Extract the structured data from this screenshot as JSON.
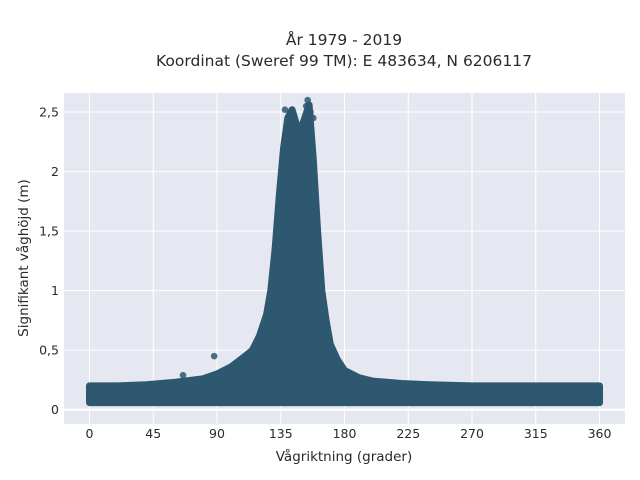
{
  "chart_data": {
    "type": "scatter",
    "title": [
      "År 1979 - 2019",
      "Koordinat (Sweref 99 TM): E 483634, N 6206117"
    ],
    "xlabel": "Vågriktning (grader)",
    "ylabel": "Signifikant våghöjd (m)",
    "xlim": [
      -18,
      378
    ],
    "ylim": [
      -0.12,
      2.66
    ],
    "x_ticks": [
      0,
      45,
      90,
      135,
      180,
      225,
      270,
      315,
      360
    ],
    "y_ticks": [
      0,
      0.5,
      1,
      1.5,
      2,
      2.5
    ],
    "y_tick_labels": [
      "0",
      "0,5",
      "1",
      "1,5",
      "2",
      "2,5"
    ],
    "grid": true,
    "legend": "none",
    "marker_color": "#2e5870",
    "plot_background": "#e5e8f0",
    "envelope": {
      "direction": [
        0,
        20,
        40,
        60,
        80,
        90,
        100,
        110,
        115,
        120,
        125,
        128,
        131,
        134,
        137,
        140,
        143,
        146,
        149,
        152,
        155,
        158,
        161,
        164,
        167,
        170,
        175,
        180,
        190,
        200,
        220,
        240,
        270,
        300,
        330,
        360
      ],
      "height_max": [
        0.2,
        0.2,
        0.21,
        0.23,
        0.26,
        0.3,
        0.36,
        0.45,
        0.5,
        0.62,
        0.8,
        1.0,
        1.35,
        1.8,
        2.2,
        2.45,
        2.52,
        2.4,
        2.35,
        2.45,
        2.56,
        2.1,
        1.5,
        1.0,
        0.75,
        0.55,
        0.42,
        0.33,
        0.27,
        0.24,
        0.22,
        0.21,
        0.2,
        0.2,
        0.2,
        0.2
      ],
      "height_min": 0.06
    },
    "points": [
      {
        "x": 88,
        "y": 0.45
      },
      {
        "x": 133,
        "y": 1.0
      },
      {
        "x": 135,
        "y": 1.45
      },
      {
        "x": 138,
        "y": 2.52
      },
      {
        "x": 142,
        "y": 2.46
      },
      {
        "x": 153,
        "y": 2.55
      },
      {
        "x": 154,
        "y": 2.6
      },
      {
        "x": 156,
        "y": 2.5
      },
      {
        "x": 158,
        "y": 2.45
      },
      {
        "x": 160,
        "y": 0.75
      },
      {
        "x": 66,
        "y": 0.29
      },
      {
        "x": 350,
        "y": 0.2
      }
    ]
  }
}
